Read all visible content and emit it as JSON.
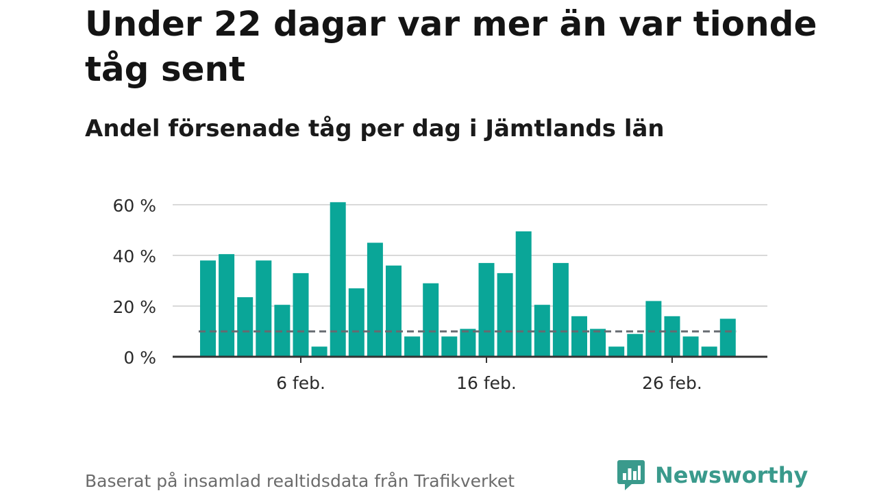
{
  "title": "Under 22 dagar var mer än var tionde tåg sent",
  "subtitle": "Andel försenade tåg per dag i Jämtlands län",
  "source": "Baserat på insamlad realtidsdata från Trafikverket",
  "brand": {
    "name": "Newsworthy",
    "icon": "newsworthy-logo-icon",
    "color": "#3a9a8c"
  },
  "chart_data": {
    "type": "bar",
    "x": [
      1,
      2,
      3,
      4,
      5,
      6,
      7,
      8,
      9,
      10,
      11,
      12,
      13,
      14,
      15,
      16,
      17,
      18,
      19,
      20,
      21,
      22,
      23,
      24,
      25,
      26,
      27,
      28,
      29
    ],
    "values": [
      38,
      40.5,
      23.5,
      38,
      20.5,
      33,
      4,
      61,
      27,
      45,
      36,
      8,
      29,
      8,
      11,
      37,
      33,
      49.5,
      20.5,
      37,
      16,
      11,
      4,
      9,
      22,
      16,
      8,
      4,
      15
    ],
    "reference_value": 10,
    "ylim": [
      0,
      60
    ],
    "yticks": [
      0,
      20,
      40,
      60
    ],
    "ytick_labels": [
      "0 %",
      "20 %",
      "40 %",
      "60 %"
    ],
    "xticks": [
      6,
      16,
      26
    ],
    "xtick_labels": [
      "6 feb.",
      "16 feb.",
      "26 feb."
    ],
    "grid": true,
    "bar_color": "#0aa698",
    "reference_color": "#666a70"
  }
}
